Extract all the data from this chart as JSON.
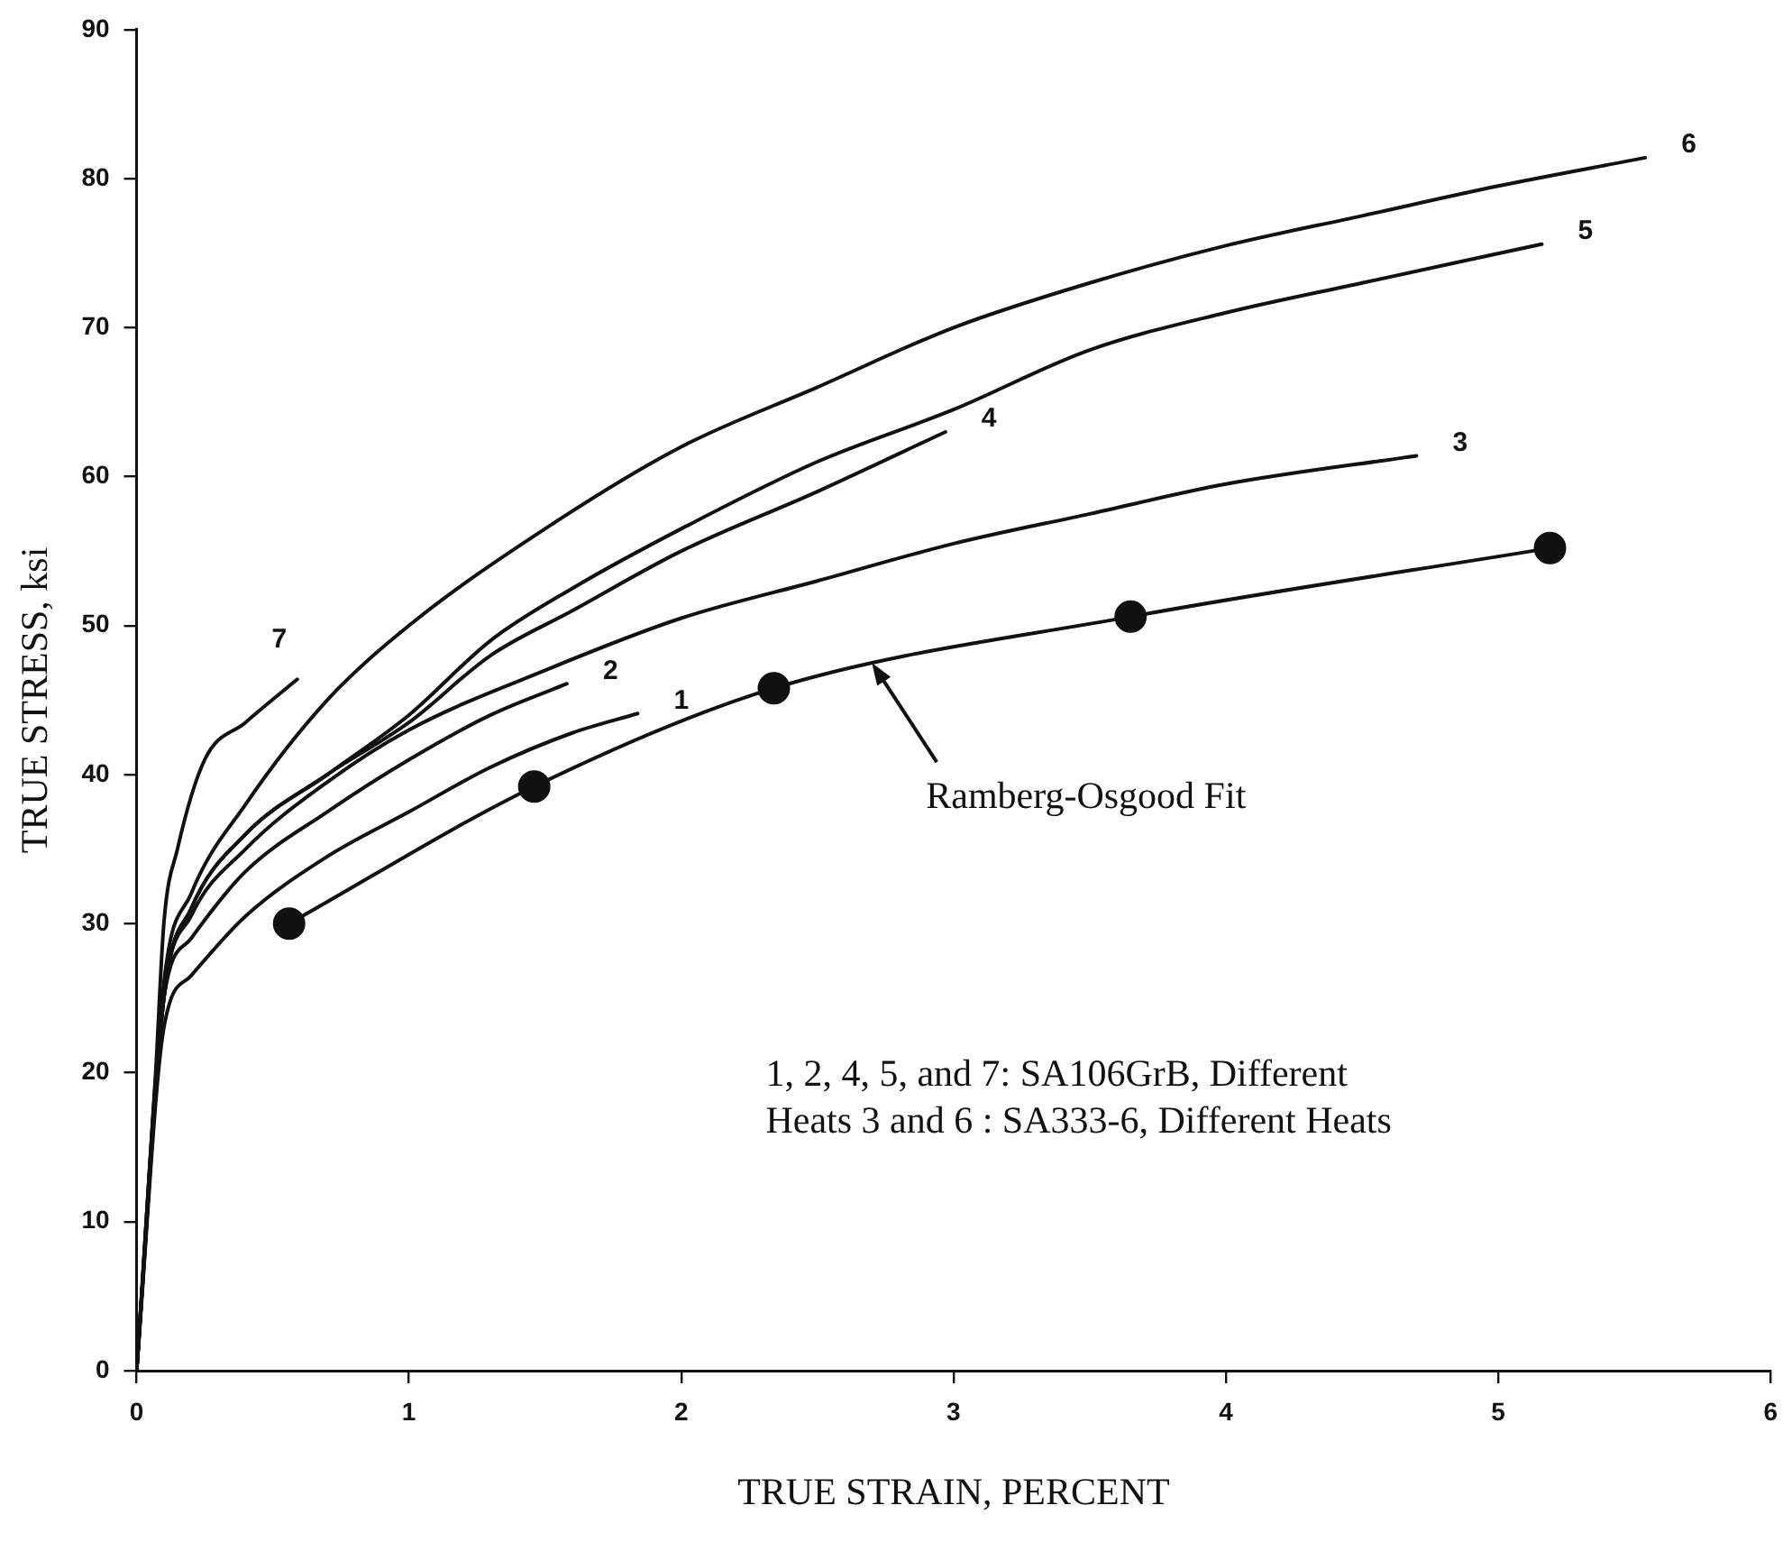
{
  "chart_data": {
    "type": "line",
    "xlabel": "TRUE STRAIN, PERCENT",
    "ylabel": "TRUE STRESS, ksi",
    "xlim": [
      0,
      6
    ],
    "xticks": [
      0,
      1,
      2,
      3,
      4,
      5,
      6
    ],
    "ylim": [
      0,
      90
    ],
    "yticks": [
      0,
      10,
      20,
      30,
      40,
      50,
      60,
      70,
      80,
      90
    ],
    "grid": false,
    "legend": false,
    "line_style": "solid",
    "marker": "none",
    "series": [
      {
        "name": "1",
        "color": "#111111",
        "x": [
          0,
          0.1,
          0.2,
          0.4,
          0.7,
          1.0,
          1.3,
          1.6,
          1.84
        ],
        "values": [
          0,
          23,
          26.5,
          30.5,
          34.5,
          37.5,
          40.5,
          42.8,
          44.1
        ]
      },
      {
        "name": "2",
        "color": "#111111",
        "x": [
          0,
          0.1,
          0.2,
          0.4,
          0.7,
          1.0,
          1.3,
          1.58
        ],
        "values": [
          0,
          25,
          29,
          33.5,
          37.5,
          41,
          44,
          46.1
        ]
      },
      {
        "name": "3",
        "color": "#111111",
        "x": [
          0,
          0.1,
          0.2,
          0.4,
          0.7,
          1.0,
          1.5,
          2.0,
          2.5,
          3.0,
          3.5,
          4.0,
          4.7
        ],
        "values": [
          0,
          25,
          30.5,
          35,
          39.5,
          43,
          47,
          50.5,
          53,
          55.5,
          57.5,
          59.5,
          61.4
        ]
      },
      {
        "name": "4",
        "color": "#111111",
        "x": [
          0,
          0.1,
          0.2,
          0.4,
          0.7,
          1.0,
          1.3,
          1.6,
          2.0,
          2.5,
          2.97
        ],
        "values": [
          0,
          25,
          31,
          36,
          40,
          43.5,
          48,
          51,
          55,
          59,
          63
        ]
      },
      {
        "name": "5",
        "color": "#111111",
        "x": [
          0,
          0.1,
          0.2,
          0.4,
          0.7,
          1.0,
          1.3,
          1.6,
          2.0,
          2.5,
          3.0,
          3.5,
          4.0,
          4.5,
          5.16
        ],
        "values": [
          0,
          25,
          31,
          36,
          40,
          44,
          49,
          52.5,
          56.5,
          61,
          64.5,
          68.5,
          71,
          73,
          75.6
        ]
      },
      {
        "name": "6",
        "color": "#111111",
        "x": [
          0,
          0.1,
          0.2,
          0.4,
          0.7,
          1.0,
          1.5,
          2.0,
          2.5,
          3.0,
          3.5,
          4.0,
          4.5,
          5.0,
          5.54
        ],
        "values": [
          0,
          26,
          32,
          38,
          45,
          50,
          56.5,
          62,
          66,
          70,
          73,
          75.5,
          77.5,
          79.5,
          81.4
        ]
      },
      {
        "name": "7",
        "color": "#111111",
        "x": [
          0,
          0.07,
          0.1,
          0.15,
          0.25,
          0.4,
          0.59
        ],
        "values": [
          0,
          20,
          30,
          35,
          41,
          43.5,
          46.4
        ]
      },
      {
        "color": "#111111",
        "marker": "circle",
        "x": [
          0.56,
          1.46,
          2.34,
          3.65,
          5.19
        ],
        "values": [
          30,
          39.2,
          45.8,
          50.6,
          55.2
        ]
      }
    ],
    "annotations": [
      {
        "text": "Ramberg-Osgood Fit",
        "x": 2.7,
        "y": 47.5
      },
      "1, 2, 4, 5, and 7: SA106GrB, Different",
      "Heats 3 and 6 : SA333-6, Different Heats"
    ]
  }
}
